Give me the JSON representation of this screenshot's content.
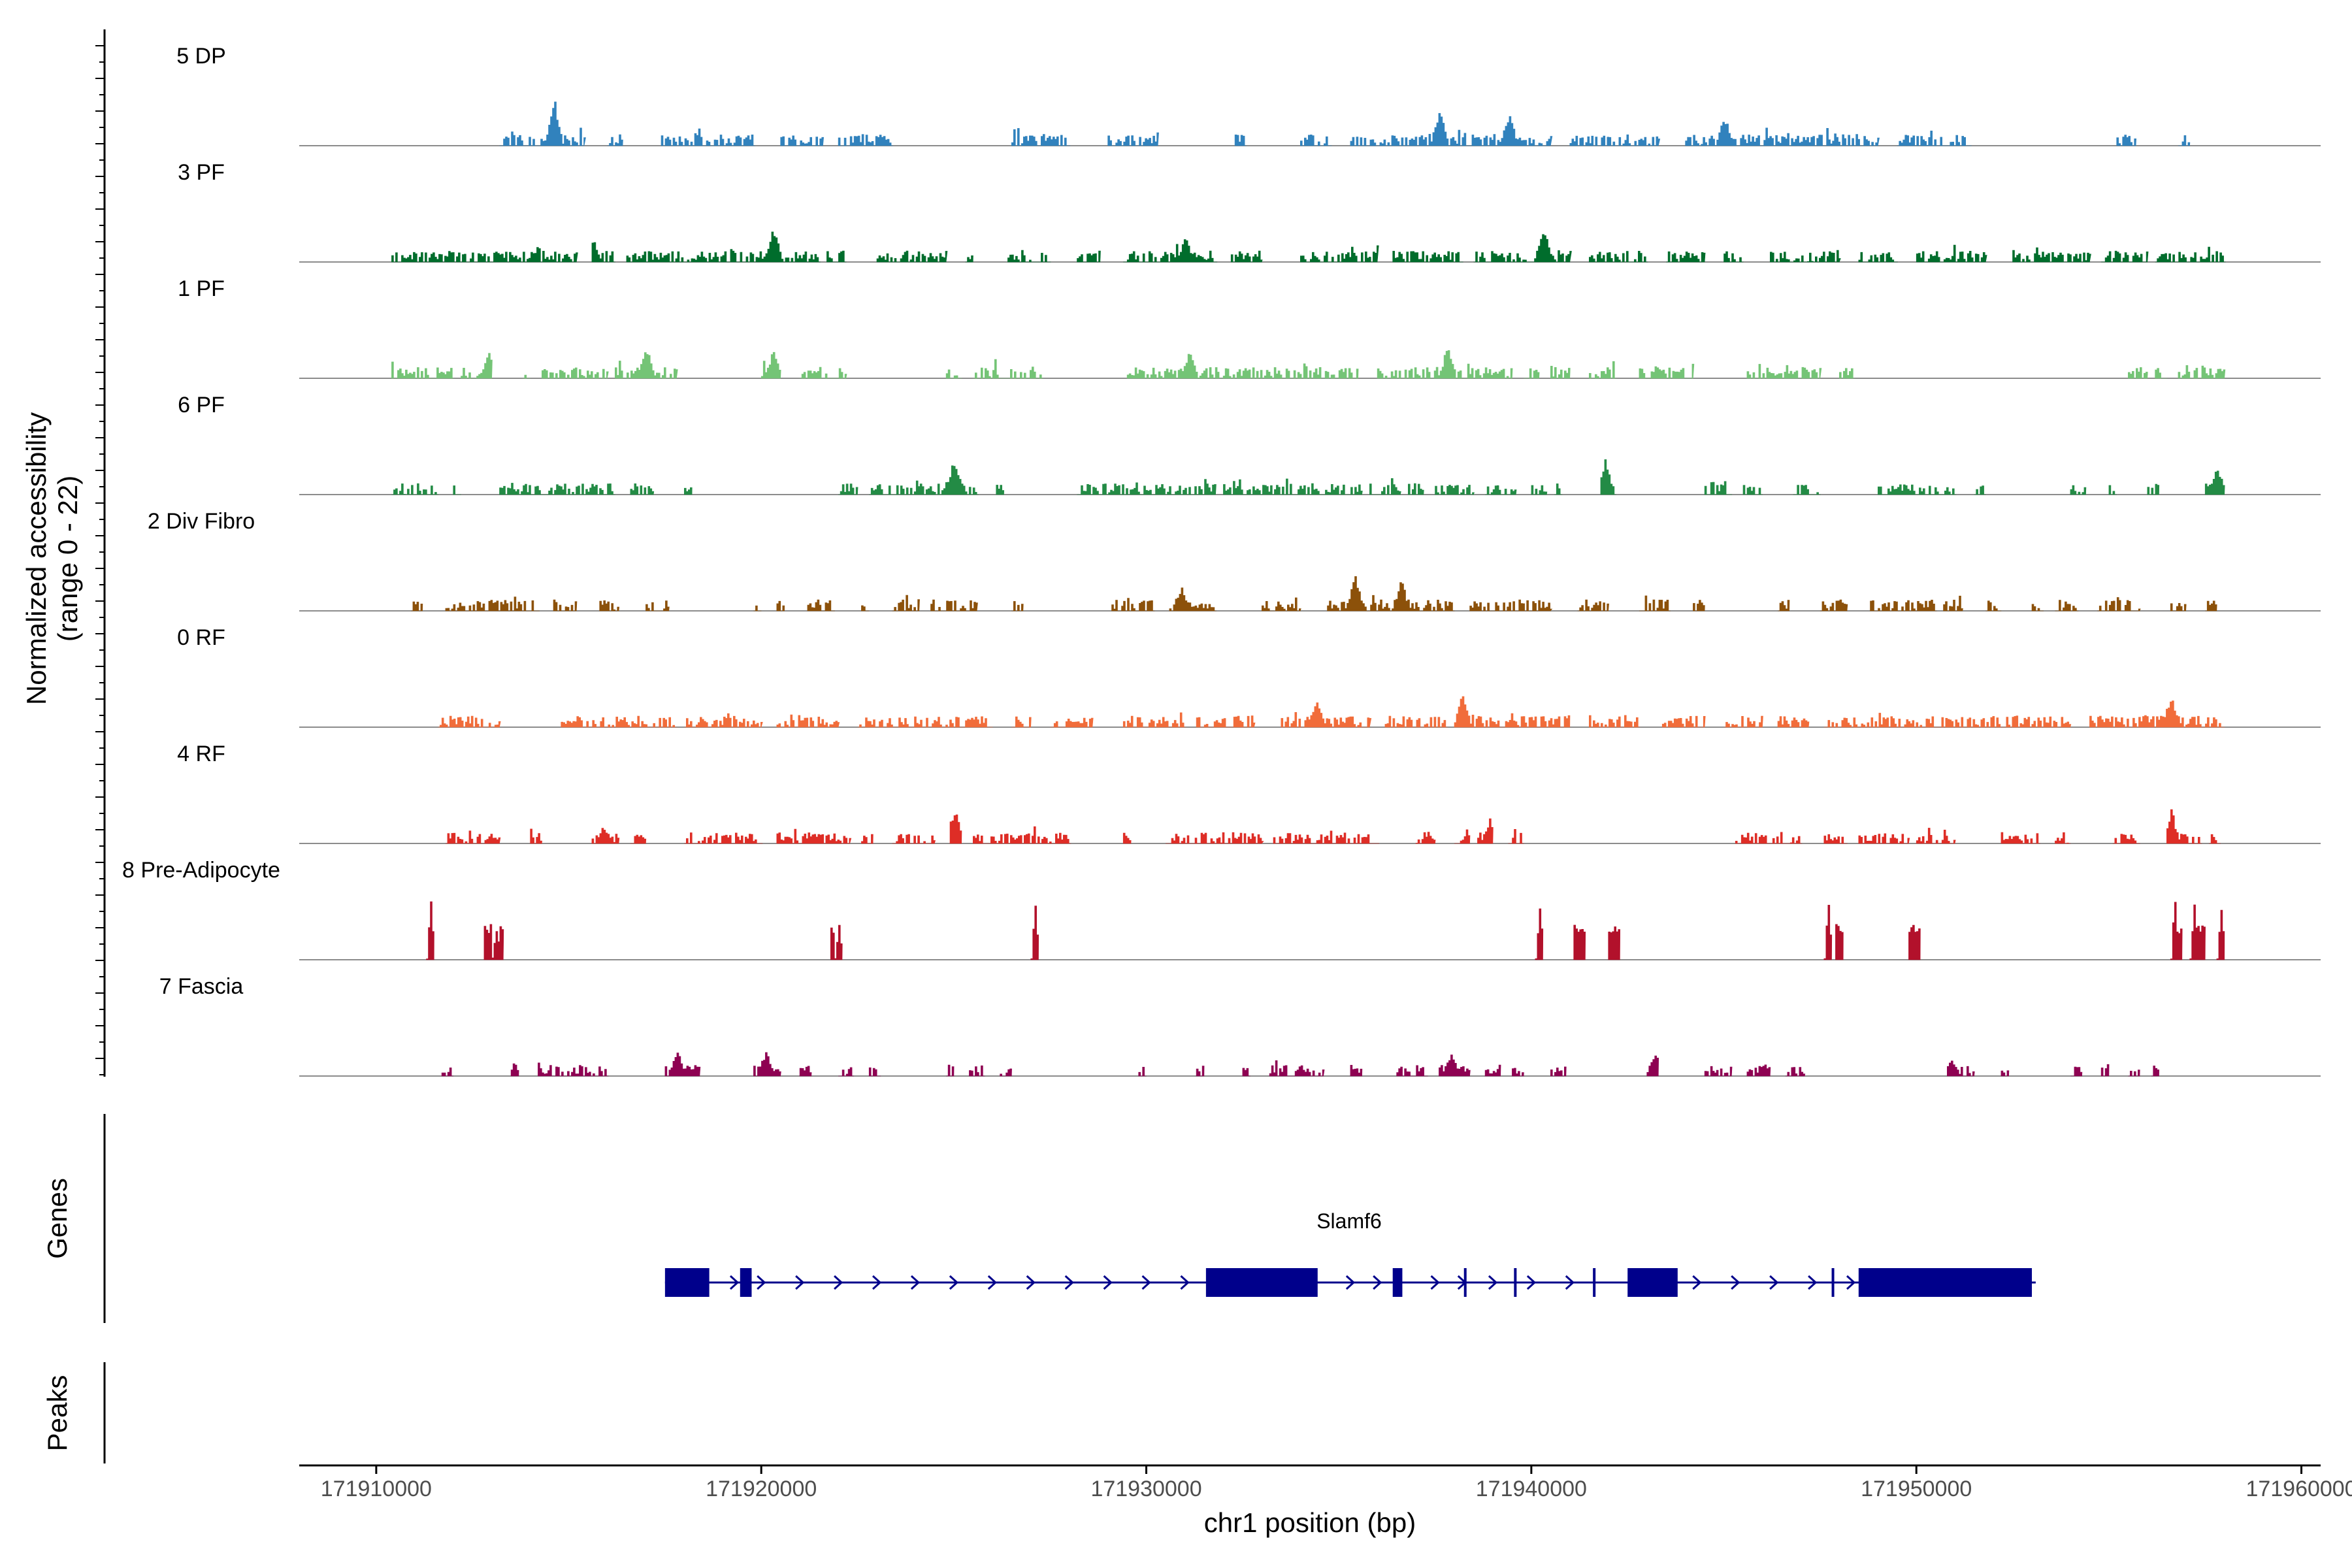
{
  "chart_data": {
    "type": "coverage",
    "y_axis_title_line1": "Normalized accessibility",
    "y_axis_title_line2": "(range 0 - 22)",
    "y_range": [
      0,
      22
    ],
    "x_axis_title": "chr1 position (bp)",
    "x_range": [
      171908000,
      171960500
    ],
    "x_ticks": [
      171910000,
      171920000,
      171930000,
      171940000,
      171950000,
      171960000
    ],
    "x_tick_labels": [
      "171910000",
      "171920000",
      "171930000",
      "171940000",
      "171950000",
      "171960000"
    ],
    "tracks": [
      {
        "name": "5 DP",
        "color": "#3182bd",
        "regions": [
          [
            171913200,
            171915400
          ],
          [
            171916000,
            171916400
          ],
          [
            171917400,
            171919800
          ],
          [
            171920500,
            171921600
          ],
          [
            171922000,
            171923400
          ],
          [
            171926500,
            171928000
          ],
          [
            171929000,
            171930300
          ],
          [
            171932300,
            171932600
          ],
          [
            171934000,
            171934800
          ],
          [
            171935300,
            171940500
          ],
          [
            171941000,
            171943300
          ],
          [
            171944000,
            171949000
          ],
          [
            171949500,
            171951400
          ],
          [
            171955200,
            171955700
          ],
          [
            171956800,
            171957100
          ]
        ],
        "peaks": [
          [
            171914600,
            16
          ],
          [
            171937600,
            13
          ],
          [
            171939400,
            11
          ],
          [
            171945000,
            10
          ]
        ]
      },
      {
        "name": "3 PF",
        "color": "#006d2c",
        "regions": [
          [
            171910400,
            171915200
          ],
          [
            171915600,
            171916200
          ],
          [
            171916500,
            171921500
          ],
          [
            171921700,
            171922200
          ],
          [
            171923000,
            171924800
          ],
          [
            171925300,
            171925500
          ],
          [
            171926400,
            171927500
          ],
          [
            171928200,
            171928800
          ],
          [
            171929400,
            171931800
          ],
          [
            171932200,
            171933000
          ],
          [
            171934000,
            171936000
          ],
          [
            171936400,
            171938200
          ],
          [
            171938500,
            171941000
          ],
          [
            171941500,
            171943000
          ],
          [
            171943500,
            171944500
          ],
          [
            171945000,
            171945500
          ],
          [
            171946200,
            171948000
          ],
          [
            171948500,
            171949500
          ],
          [
            171950000,
            171951800
          ],
          [
            171952500,
            171954500
          ],
          [
            171954800,
            171956000
          ],
          [
            171956200,
            171958000
          ]
        ],
        "peaks": [
          [
            171920300,
            12
          ],
          [
            171940300,
            12
          ],
          [
            171931000,
            8
          ],
          [
            171915600,
            8
          ]
        ]
      },
      {
        "name": "1 PF",
        "color": "#74c476",
        "regions": [
          [
            171910400,
            171912000
          ],
          [
            171912200,
            171913000
          ],
          [
            171913800,
            171914000
          ],
          [
            171914300,
            171916000
          ],
          [
            171916200,
            171917800
          ],
          [
            171920000,
            171920500
          ],
          [
            171921000,
            171922200
          ],
          [
            171924800,
            171925200
          ],
          [
            171925500,
            171927300
          ],
          [
            171929500,
            171935500
          ],
          [
            171936000,
            171939500
          ],
          [
            171939800,
            171940200
          ],
          [
            171940500,
            171941000
          ],
          [
            171941500,
            171942200
          ],
          [
            171942800,
            171944200
          ],
          [
            171945600,
            171947500
          ],
          [
            171948000,
            171948400
          ],
          [
            171955500,
            171956000
          ],
          [
            171956200,
            171956500
          ],
          [
            171956800,
            171958000
          ]
        ],
        "peaks": [
          [
            171917000,
            11
          ],
          [
            171937800,
            10
          ],
          [
            171931100,
            9
          ],
          [
            171912900,
            9
          ],
          [
            171920300,
            9
          ]
        ]
      },
      {
        "name": "6 PF",
        "color": "#238b45",
        "regions": [
          [
            171910400,
            171911600
          ],
          [
            171912000,
            171912200
          ],
          [
            171913200,
            171916200
          ],
          [
            171916600,
            171917200
          ],
          [
            171918000,
            171918200
          ],
          [
            171922000,
            171922500
          ],
          [
            171922800,
            171925600
          ],
          [
            171926100,
            171926300
          ],
          [
            171928200,
            171931800
          ],
          [
            171932000,
            171935600
          ],
          [
            171935800,
            171936600
          ],
          [
            171936800,
            171937200
          ],
          [
            171937500,
            171938500
          ],
          [
            171938800,
            171939600
          ],
          [
            171940000,
            171940400
          ],
          [
            171940600,
            171940800
          ],
          [
            171941800,
            171942200
          ],
          [
            171944500,
            171945200
          ],
          [
            171945500,
            171946000
          ],
          [
            171946800,
            171947500
          ],
          [
            171949000,
            171951000
          ],
          [
            171951500,
            171951800
          ],
          [
            171954000,
            171954400
          ],
          [
            171955000,
            171955200
          ],
          [
            171956000,
            171956300
          ],
          [
            171957500,
            171958000
          ]
        ],
        "peaks": [
          [
            171925000,
            13
          ],
          [
            171941900,
            11
          ],
          [
            171957800,
            10
          ]
        ]
      },
      {
        "name": "2 Div Fibro",
        "color": "#8c510a",
        "regions": [
          [
            171910900,
            171911200
          ],
          [
            171911800,
            171914200
          ],
          [
            171914600,
            171915200
          ],
          [
            171915800,
            171916300
          ],
          [
            171917000,
            171917600
          ],
          [
            171919800,
            171920000
          ],
          [
            171920400,
            171920600
          ],
          [
            171921200,
            171921900
          ],
          [
            171922600,
            171922800
          ],
          [
            171923400,
            171924100
          ],
          [
            171924400,
            171925600
          ],
          [
            171926500,
            171926800
          ],
          [
            171929100,
            171930200
          ],
          [
            171930600,
            171931800
          ],
          [
            171933000,
            171934000
          ],
          [
            171934700,
            171938000
          ],
          [
            171938400,
            171940500
          ],
          [
            171941200,
            171942000
          ],
          [
            171942800,
            171943600
          ],
          [
            171944200,
            171944500
          ],
          [
            171946400,
            171946700
          ],
          [
            171947500,
            171948200
          ],
          [
            171948800,
            171950500
          ],
          [
            171950700,
            171951200
          ],
          [
            171951800,
            171952200
          ],
          [
            171953000,
            171953300
          ],
          [
            171953600,
            171954200
          ],
          [
            171954700,
            171955800
          ],
          [
            171956600,
            171957000
          ],
          [
            171957500,
            171957800
          ]
        ],
        "peaks": [
          [
            171935400,
            12
          ],
          [
            171936600,
            10
          ],
          [
            171930900,
            8
          ]
        ]
      },
      {
        "name": "0 RF",
        "color": "#f16c3a",
        "regions": [
          [
            171911600,
            171913200
          ],
          [
            171914800,
            171917800
          ],
          [
            171918000,
            171920000
          ],
          [
            171920400,
            171922000
          ],
          [
            171922500,
            171926000
          ],
          [
            171926500,
            171927000
          ],
          [
            171927500,
            171928600
          ],
          [
            171929400,
            171931000
          ],
          [
            171931300,
            171932800
          ],
          [
            171933500,
            171935800
          ],
          [
            171936200,
            171937800
          ],
          [
            171938000,
            171941000
          ],
          [
            171941500,
            171942800
          ],
          [
            171943400,
            171944500
          ],
          [
            171945000,
            171946000
          ],
          [
            171946400,
            171947200
          ],
          [
            171947600,
            171954000
          ],
          [
            171954500,
            171958000
          ]
        ],
        "peaks": [
          [
            171934400,
            9
          ],
          [
            171938200,
            11
          ],
          [
            171956600,
            11
          ]
        ]
      },
      {
        "name": "4 RF",
        "color": "#de2d26",
        "regions": [
          [
            171911800,
            171913200
          ],
          [
            171914000,
            171914300
          ],
          [
            171915600,
            171916300
          ],
          [
            171916600,
            171917000
          ],
          [
            171918000,
            171920000
          ],
          [
            171920400,
            171922300
          ],
          [
            171922600,
            171922900
          ],
          [
            171923400,
            171924500
          ],
          [
            171924900,
            171925200
          ],
          [
            171925500,
            171928000
          ],
          [
            171929400,
            171929600
          ],
          [
            171930500,
            171933000
          ],
          [
            171933300,
            171936000
          ],
          [
            171937000,
            171937500
          ],
          [
            171938000,
            171938400
          ],
          [
            171938600,
            171939000
          ],
          [
            171939400,
            171939800
          ],
          [
            171945300,
            171947000
          ],
          [
            171947600,
            171948200
          ],
          [
            171948500,
            171949800
          ],
          [
            171950000,
            171951000
          ],
          [
            171952200,
            171953200
          ],
          [
            171953600,
            171954000
          ],
          [
            171955100,
            171955800
          ],
          [
            171956500,
            171957400
          ],
          [
            171957600,
            171957900
          ]
        ],
        "peaks": [
          [
            171925000,
            12
          ],
          [
            171956600,
            11
          ],
          [
            171938900,
            8
          ],
          [
            171915900,
            6
          ]
        ]
      },
      {
        "name": "8 Pre-Adipocyte",
        "color": "#b2112b",
        "regions": [
          [
            171911300,
            171911500
          ],
          [
            171912800,
            171913300
          ],
          [
            171921800,
            171922100
          ],
          [
            171927000,
            171927200
          ],
          [
            171940100,
            171940300
          ],
          [
            171941100,
            171941400
          ],
          [
            171942000,
            171942300
          ],
          [
            171947600,
            171947800
          ],
          [
            171947900,
            171948100
          ],
          [
            171949800,
            171950100
          ],
          [
            171956600,
            171956900
          ],
          [
            171957100,
            171957500
          ],
          [
            171957800,
            171958000
          ]
        ],
        "peaks": [
          [
            171911400,
            20
          ],
          [
            171927100,
            22
          ],
          [
            171940200,
            22
          ],
          [
            171947700,
            22
          ],
          [
            171956700,
            22
          ],
          [
            171957200,
            22
          ],
          [
            171957900,
            22
          ],
          [
            171913100,
            13
          ],
          [
            171922000,
            13
          ]
        ]
      },
      {
        "name": "7 Fascia",
        "color": "#8e0152",
        "regions": [
          [
            171911700,
            171912000
          ],
          [
            171913500,
            171913700
          ],
          [
            171914200,
            171916000
          ],
          [
            171917500,
            171918400
          ],
          [
            171919800,
            171920500
          ],
          [
            171921000,
            171921300
          ],
          [
            171922000,
            171922400
          ],
          [
            171922800,
            171923100
          ],
          [
            171924800,
            171925000
          ],
          [
            171925400,
            171925800
          ],
          [
            171926200,
            171926500
          ],
          [
            171929800,
            171930000
          ],
          [
            171931300,
            171931500
          ],
          [
            171932500,
            171932700
          ],
          [
            171933200,
            171934600
          ],
          [
            171935300,
            171935600
          ],
          [
            171936500,
            171937300
          ],
          [
            171937600,
            171938400
          ],
          [
            171938800,
            171939200
          ],
          [
            171939500,
            171939800
          ],
          [
            171940500,
            171940900
          ],
          [
            171943000,
            171943300
          ],
          [
            171944500,
            171945200
          ],
          [
            171945600,
            171946200
          ],
          [
            171946600,
            171947100
          ],
          [
            171950800,
            171951500
          ],
          [
            171952200,
            171952400
          ],
          [
            171954000,
            171954300
          ],
          [
            171954800,
            171955000
          ],
          [
            171955500,
            171955800
          ],
          [
            171956100,
            171956300
          ]
        ],
        "peaks": [
          [
            171914100,
            8
          ],
          [
            171917800,
            8
          ],
          [
            171920100,
            8
          ],
          [
            171937900,
            8
          ],
          [
            171943200,
            8
          ],
          [
            171950900,
            6
          ]
        ]
      }
    ],
    "genes_panel_title": "Genes",
    "peaks_panel_title": "Peaks",
    "gene": {
      "name": "Slamf6",
      "color": "#00008b",
      "start": 171917500,
      "end": 171953100,
      "strand": "+",
      "exons": [
        [
          171917500,
          171918650
        ],
        [
          171919450,
          171919750
        ],
        [
          171931550,
          171934450
        ],
        [
          171936400,
          171936650
        ],
        [
          171938250,
          171938300
        ],
        [
          171939550,
          171939600
        ],
        [
          171941600,
          171941650
        ],
        [
          171942500,
          171943800
        ],
        [
          171947800,
          171947850
        ],
        [
          171948500,
          171953000
        ]
      ],
      "arrows": [
        171917700,
        171919300,
        171920000,
        171921000,
        171922000,
        171923000,
        171924000,
        171925000,
        171926000,
        171927000,
        171928000,
        171929000,
        171930000,
        171931000,
        171935300,
        171936000,
        171937500,
        171938200,
        171939000,
        171940000,
        171941000,
        171944300,
        171945300,
        171946300,
        171947300,
        171948300
      ]
    }
  }
}
